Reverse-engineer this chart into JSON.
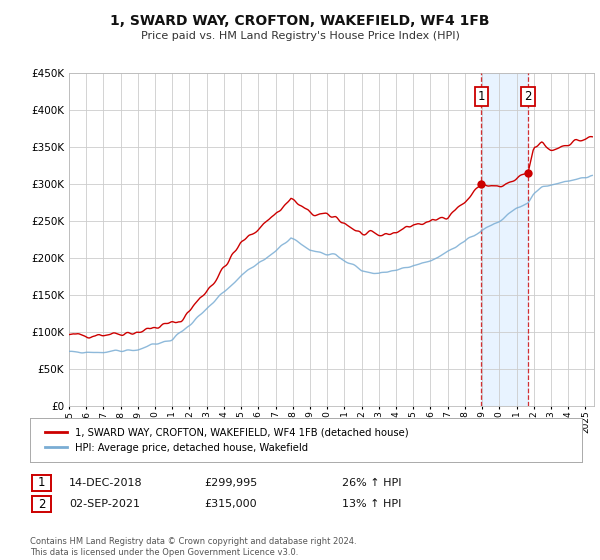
{
  "title": "1, SWARD WAY, CROFTON, WAKEFIELD, WF4 1FB",
  "subtitle": "Price paid vs. HM Land Registry's House Price Index (HPI)",
  "background_color": "#ffffff",
  "plot_bg_color": "#ffffff",
  "grid_color": "#cccccc",
  "red_line_color": "#cc0000",
  "blue_line_color": "#7aadd4",
  "shade_color": "#ddeeff",
  "vline_color": "#cc0000",
  "legend_label_red": "1, SWARD WAY, CROFTON, WAKEFIELD, WF4 1FB (detached house)",
  "legend_label_blue": "HPI: Average price, detached house, Wakefield",
  "annotation1_date": "14-DEC-2018",
  "annotation1_price": "£299,995",
  "annotation1_hpi": "26% ↑ HPI",
  "annotation1_year": 2018.96,
  "annotation1_value": 299995,
  "annotation2_date": "02-SEP-2021",
  "annotation2_price": "£315,000",
  "annotation2_hpi": "13% ↑ HPI",
  "annotation2_year": 2021.67,
  "annotation2_value": 315000,
  "footer1": "Contains HM Land Registry data © Crown copyright and database right 2024.",
  "footer2": "This data is licensed under the Open Government Licence v3.0.",
  "ylim": [
    0,
    450000
  ],
  "xlim_start": 1995.0,
  "xlim_end": 2025.5
}
